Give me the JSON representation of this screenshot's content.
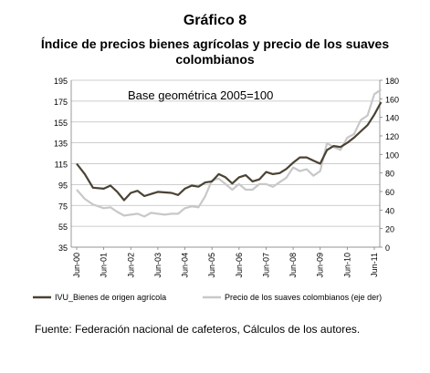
{
  "figure": {
    "label": "Gráfico 8",
    "title": "Índice de precios bienes agrícolas y precio de los suaves colombianos",
    "source": "Fuente: Federación nacional de cafeteros, Cálculos de los autores."
  },
  "chart_data": {
    "type": "line",
    "title": "Índice de precios bienes agrícolas y precio de los suaves colombianos",
    "annotation": "Base geométrica 2005=100",
    "x_tick_labels": [
      "Jun-00",
      "Jun-01",
      "Jun-02",
      "Jun-03",
      "Jun-04",
      "Jun-05",
      "Jun-06",
      "Jun-07",
      "Jun-08",
      "Jun-09",
      "Jun-10",
      "Jun-11"
    ],
    "x_range": [
      2000.0,
      2011.0
    ],
    "y_left": {
      "range": [
        35,
        195
      ],
      "ticks": [
        35,
        55,
        75,
        95,
        115,
        135,
        155,
        175,
        195
      ]
    },
    "y_right": {
      "range": [
        0,
        180
      ],
      "ticks": [
        0,
        20,
        40,
        60,
        80,
        100,
        120,
        140,
        160,
        180
      ]
    },
    "gridlines": "horizontal",
    "legend_position": "bottom",
    "series": [
      {
        "name": "IVU_Bienes de origen agrícola",
        "axis": "left",
        "color": "#4a4233",
        "points": [
          [
            2000.0,
            115
          ],
          [
            2000.3,
            105
          ],
          [
            2000.6,
            92
          ],
          [
            2001.0,
            91
          ],
          [
            2001.25,
            94
          ],
          [
            2001.5,
            88
          ],
          [
            2001.75,
            80
          ],
          [
            2002.0,
            87
          ],
          [
            2002.25,
            89
          ],
          [
            2002.5,
            84
          ],
          [
            2002.75,
            86
          ],
          [
            2003.0,
            88
          ],
          [
            2003.5,
            87
          ],
          [
            2003.75,
            85
          ],
          [
            2004.0,
            91
          ],
          [
            2004.25,
            94
          ],
          [
            2004.5,
            93
          ],
          [
            2004.75,
            97
          ],
          [
            2005.0,
            98
          ],
          [
            2005.25,
            105
          ],
          [
            2005.5,
            102
          ],
          [
            2005.75,
            96
          ],
          [
            2006.0,
            102
          ],
          [
            2006.25,
            104
          ],
          [
            2006.5,
            98
          ],
          [
            2006.75,
            100
          ],
          [
            2007.0,
            107
          ],
          [
            2007.25,
            105
          ],
          [
            2007.5,
            106
          ],
          [
            2007.75,
            110
          ],
          [
            2008.0,
            116
          ],
          [
            2008.25,
            121
          ],
          [
            2008.5,
            121
          ],
          [
            2008.75,
            118
          ],
          [
            2009.0,
            115
          ],
          [
            2009.25,
            128
          ],
          [
            2009.5,
            132
          ],
          [
            2009.75,
            131
          ],
          [
            2010.0,
            135
          ],
          [
            2010.25,
            140
          ],
          [
            2010.5,
            146
          ],
          [
            2010.75,
            152
          ],
          [
            2011.0,
            162
          ],
          [
            2011.25,
            174
          ]
        ]
      },
      {
        "name": "Precio de los suaves colombianos (eje der)",
        "axis": "right",
        "color": "#c8c8c8",
        "points": [
          [
            2000.0,
            62
          ],
          [
            2000.3,
            52
          ],
          [
            2000.6,
            46
          ],
          [
            2001.0,
            42
          ],
          [
            2001.25,
            43
          ],
          [
            2001.5,
            38
          ],
          [
            2001.75,
            34
          ],
          [
            2002.0,
            35
          ],
          [
            2002.25,
            36
          ],
          [
            2002.5,
            33
          ],
          [
            2002.75,
            37
          ],
          [
            2003.0,
            36
          ],
          [
            2003.25,
            35
          ],
          [
            2003.5,
            36
          ],
          [
            2003.75,
            36
          ],
          [
            2004.0,
            42
          ],
          [
            2004.25,
            44
          ],
          [
            2004.5,
            43
          ],
          [
            2004.75,
            55
          ],
          [
            2005.0,
            72
          ],
          [
            2005.25,
            74
          ],
          [
            2005.5,
            68
          ],
          [
            2005.75,
            62
          ],
          [
            2006.0,
            68
          ],
          [
            2006.25,
            62
          ],
          [
            2006.5,
            62
          ],
          [
            2006.75,
            68
          ],
          [
            2007.0,
            68
          ],
          [
            2007.25,
            65
          ],
          [
            2007.5,
            70
          ],
          [
            2007.75,
            75
          ],
          [
            2008.0,
            86
          ],
          [
            2008.25,
            82
          ],
          [
            2008.5,
            84
          ],
          [
            2008.75,
            77
          ],
          [
            2009.0,
            82
          ],
          [
            2009.25,
            112
          ],
          [
            2009.5,
            108
          ],
          [
            2009.75,
            105
          ],
          [
            2010.0,
            118
          ],
          [
            2010.25,
            122
          ],
          [
            2010.5,
            137
          ],
          [
            2010.75,
            142
          ],
          [
            2011.0,
            165
          ],
          [
            2011.25,
            170
          ]
        ]
      }
    ]
  }
}
